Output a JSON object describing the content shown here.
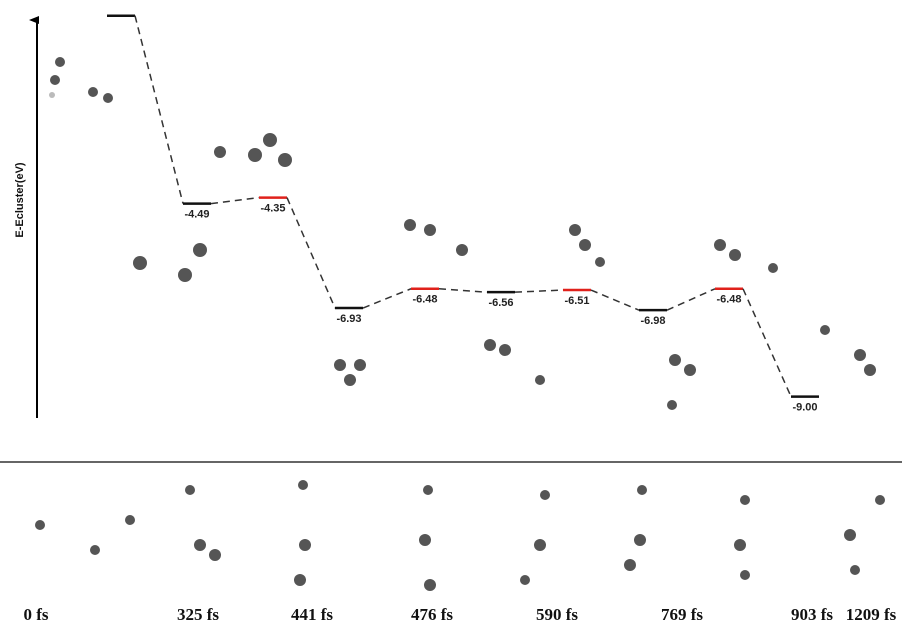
{
  "chart_data": {
    "type": "energy_profile",
    "y_label": "E-Ecluster(eV)",
    "values": [
      -0.1,
      -4.49,
      -4.35,
      -6.93,
      -6.48,
      -6.56,
      -6.51,
      -6.98,
      -6.48,
      -9.0
    ],
    "value_labels": [
      null,
      "-4.49",
      "-4.35",
      "-6.93",
      "-6.48",
      "-6.56",
      "-6.51",
      "-6.98",
      "-6.48",
      "-9.00"
    ],
    "colors": [
      "#111111",
      "#111111",
      "#e0211b",
      "#111111",
      "#e0211b",
      "#111111",
      "#e0211b",
      "#111111",
      "#e0211b",
      "#111111"
    ],
    "ylim": [
      -9.5,
      -0.2
    ],
    "snapshots": [
      "0 fs",
      "325 fs",
      "441 fs",
      "476 fs",
      "590 fs",
      "769 fs",
      "903 fs",
      "1209 fs"
    ]
  }
}
